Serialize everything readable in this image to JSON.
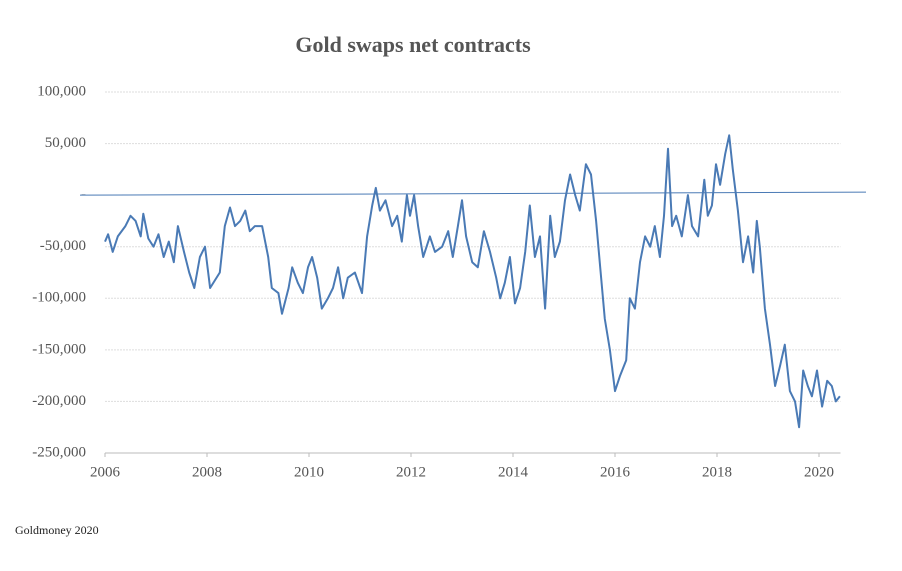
{
  "chart_data": {
    "type": "line",
    "title": "Gold swaps net  contracts",
    "footer": "Goldmoney 2020",
    "series": [
      {
        "name": "Gold swaps net contracts",
        "color": "#4a7ab5",
        "x": [
          2006.0,
          2006.06,
          2006.15,
          2006.25,
          2006.4,
          2006.5,
          2006.6,
          2006.7,
          2006.75,
          2006.85,
          2006.95,
          2007.05,
          2007.15,
          2007.25,
          2007.35,
          2007.43,
          2007.55,
          2007.65,
          2007.75,
          2007.86,
          2007.96,
          2008.06,
          2008.25,
          2008.35,
          2008.45,
          2008.55,
          2008.65,
          2008.75,
          2008.84,
          2008.94,
          2009.08,
          2009.2,
          2009.27,
          2009.4,
          2009.47,
          2009.6,
          2009.67,
          2009.78,
          2009.88,
          2009.98,
          2010.06,
          2010.16,
          2010.25,
          2010.37,
          2010.47,
          2010.57,
          2010.67,
          2010.76,
          2010.9,
          2011.04,
          2011.14,
          2011.24,
          2011.31,
          2011.39,
          2011.5,
          2011.63,
          2011.73,
          2011.82,
          2011.92,
          2011.98,
          2012.06,
          2012.14,
          2012.24,
          2012.37,
          2012.47,
          2012.61,
          2012.73,
          2012.82,
          2012.92,
          2013.0,
          2013.08,
          2013.2,
          2013.31,
          2013.43,
          2013.55,
          2013.67,
          2013.75,
          2013.84,
          2013.94,
          2014.04,
          2014.14,
          2014.24,
          2014.33,
          2014.43,
          2014.53,
          2014.63,
          2014.73,
          2014.82,
          2014.92,
          2015.02,
          2015.12,
          2015.22,
          2015.31,
          2015.43,
          2015.53,
          2015.63,
          2015.71,
          2015.8,
          2015.9,
          2016.0,
          2016.1,
          2016.22,
          2016.29,
          2016.39,
          2016.49,
          2016.59,
          2016.69,
          2016.78,
          2016.88,
          2016.96,
          2017.04,
          2017.12,
          2017.2,
          2017.31,
          2017.43,
          2017.51,
          2017.63,
          2017.75,
          2017.82,
          2017.9,
          2017.98,
          2018.06,
          2018.16,
          2018.24,
          2018.31,
          2018.41,
          2018.51,
          2018.61,
          2018.71,
          2018.78,
          2018.84,
          2018.94,
          2019.04,
          2019.14,
          2019.24,
          2019.33,
          2019.43,
          2019.53,
          2019.61,
          2019.69,
          2019.78,
          2019.86,
          2019.96,
          2020.06,
          2020.16,
          2020.25,
          2020.33,
          2020.41
        ],
        "values": [
          -45000,
          -38000,
          -55000,
          -40000,
          -30000,
          -20000,
          -25000,
          -40000,
          -18000,
          -42000,
          -50000,
          -38000,
          -60000,
          -45000,
          -65000,
          -30000,
          -55000,
          -75000,
          -90000,
          -60000,
          -50000,
          -90000,
          -75000,
          -30000,
          -12000,
          -30000,
          -25000,
          -15000,
          -35000,
          -30000,
          -30000,
          -60000,
          -90000,
          -95000,
          -115000,
          -90000,
          -70000,
          -85000,
          -95000,
          -70000,
          -60000,
          -80000,
          -110000,
          -100000,
          -90000,
          -70000,
          -100000,
          -80000,
          -75000,
          -95000,
          -40000,
          -10000,
          7000,
          -15000,
          -5000,
          -30000,
          -20000,
          -45000,
          0,
          -20000,
          0,
          -30000,
          -60000,
          -40000,
          -55000,
          -50000,
          -35000,
          -60000,
          -30000,
          -5000,
          -40000,
          -65000,
          -70000,
          -35000,
          -55000,
          -80000,
          -100000,
          -85000,
          -60000,
          -105000,
          -90000,
          -55000,
          -10000,
          -60000,
          -40000,
          -110000,
          -20000,
          -60000,
          -45000,
          -5000,
          20000,
          0,
          -15000,
          30000,
          20000,
          -25000,
          -70000,
          -120000,
          -150000,
          -190000,
          -175000,
          -160000,
          -100000,
          -110000,
          -65000,
          -40000,
          -50000,
          -30000,
          -60000,
          -20000,
          45000,
          -30000,
          -20000,
          -40000,
          0,
          -30000,
          -40000,
          15000,
          -20000,
          -10000,
          30000,
          10000,
          40000,
          58000,
          25000,
          -15000,
          -65000,
          -40000,
          -75000,
          -25000,
          -50000,
          -110000,
          -145000,
          -185000,
          -165000,
          -145000,
          -190000,
          -200000,
          -225000,
          -170000,
          -185000,
          -195000,
          -170000,
          -205000,
          -180000,
          -185000,
          -200000,
          -195000
        ]
      }
    ],
    "xlim": [
      2006,
      2020.5
    ],
    "xticks": [
      2006,
      2008,
      2010,
      2012,
      2014,
      2016,
      2018,
      2020
    ],
    "ylim": [
      -250000,
      100000
    ],
    "yticks": [
      {
        "value": -250000,
        "label": "-250,000"
      },
      {
        "value": -200000,
        "label": "-200,000"
      },
      {
        "value": -150000,
        "label": "-150,000"
      },
      {
        "value": -100000,
        "label": "-100,000"
      },
      {
        "value": -50000,
        "label": "-50,000"
      },
      {
        "value": 0,
        "label": "-"
      },
      {
        "value": 50000,
        "label": "50,000"
      },
      {
        "value": 100000,
        "label": "100,000"
      }
    ],
    "grid": true
  }
}
